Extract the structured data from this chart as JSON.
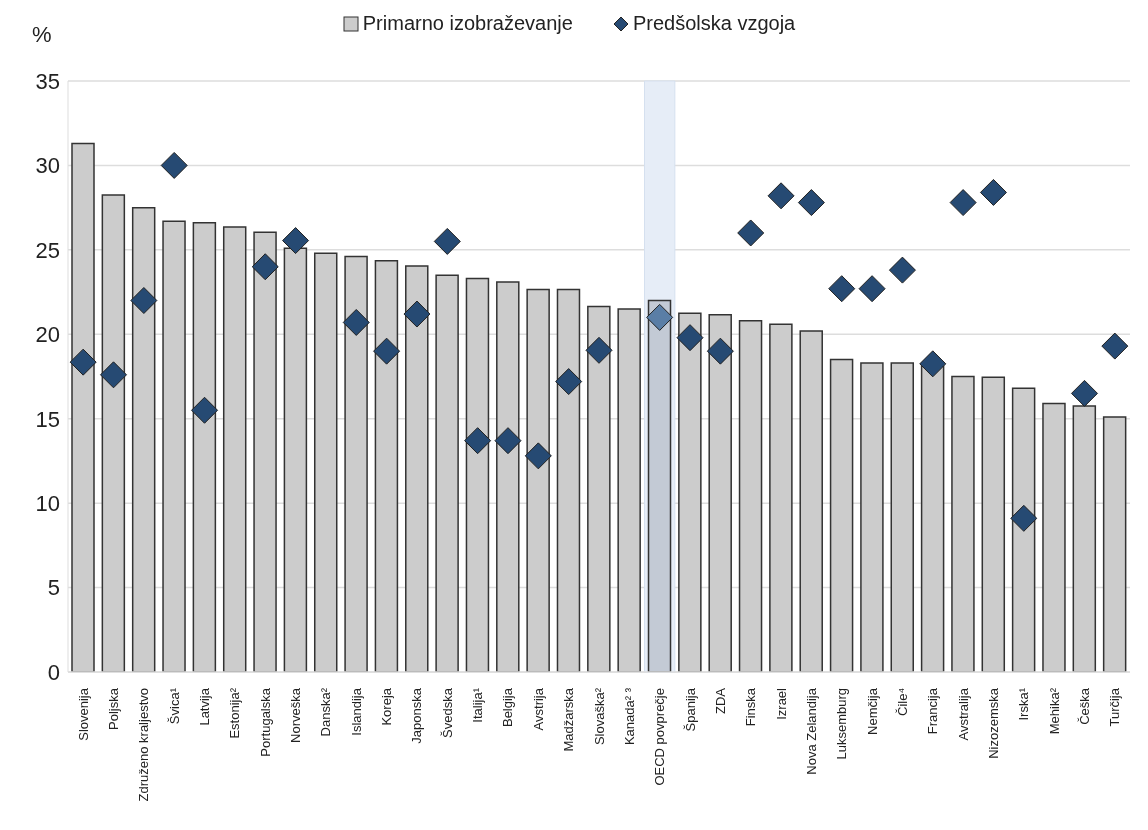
{
  "chart_data": {
    "type": "bar",
    "ylabel": "%",
    "categories": [
      "Slovenija",
      "Poljska",
      "Združeno kraljestvo",
      "Švica¹",
      "Latvija",
      "Estonija²",
      "Portugalska",
      "Norveška",
      "Danska²",
      "Islandija",
      "Koreja",
      "Japonska",
      "Švedska",
      "Italija¹",
      "Belgija",
      "Avstrija",
      "Madžarska",
      "Slovaška²",
      "Kanada² ³",
      "OECD povprečje",
      "Španija",
      "ZDA",
      "Finska",
      "Izrael",
      "Nova Zelandija",
      "Luksemburg",
      "Nemčija",
      "Čile⁴",
      "Francija",
      "Avstralija",
      "Nizozemska",
      "Irska¹",
      "Mehika²",
      "Češka",
      "Turčija"
    ],
    "series": [
      {
        "name": "Primarno izobraževanje",
        "color": "#cccccc",
        "colors": [
          "#cccccc",
          "#cccccc",
          "#cccccc",
          "#cccccc",
          "#cccccc",
          "#cccccc",
          "#cccccc",
          "#cccccc",
          "#cccccc",
          "#cccccc",
          "#cccccc",
          "#cccccc",
          "#cccccc",
          "#cccccc",
          "#cccccc",
          "#cccccc",
          "#cccccc",
          "#cccccc",
          "#cccccc",
          "#c3cad5",
          "#cccccc",
          "#cccccc",
          "#cccccc",
          "#cccccc",
          "#cccccc",
          "#cccccc",
          "#cccccc",
          "#cccccc",
          "#cccccc",
          "#cccccc",
          "#cccccc",
          "#cccccc",
          "#cccccc",
          "#cccccc",
          "#cccccc"
        ],
        "values": [
          31.3,
          28.25,
          27.5,
          26.7,
          26.6,
          26.35,
          26.05,
          25.1,
          24.8,
          24.6,
          24.35,
          24.05,
          23.5,
          23.3,
          23.1,
          22.65,
          22.65,
          21.65,
          21.5,
          22.0,
          21.25,
          21.15,
          20.8,
          20.6,
          20.2,
          18.5,
          18.3,
          18.3,
          18.1,
          17.5,
          17.45,
          16.8,
          15.9,
          15.75,
          15.1
        ]
      },
      {
        "name": "Predšolska vzgoja",
        "type": "scatter",
        "color": "#264a73",
        "colors": [
          "#264a73",
          "#264a73",
          "#264a73",
          "#264a73",
          "#264a73",
          "#264a73",
          "#264a73",
          "#264a73",
          "#264a73",
          "#264a73",
          "#264a73",
          "#264a73",
          "#264a73",
          "#264a73",
          "#264a73",
          "#264a73",
          "#264a73",
          "#264a73",
          "#264a73",
          "#5a7ea6",
          "#264a73",
          "#264a73",
          "#264a73",
          "#264a73",
          "#264a73",
          "#264a73",
          "#264a73",
          "#264a73",
          "#264a73",
          "#264a73",
          "#264a73",
          "#264a73",
          "#264a73",
          "#264a73",
          "#264a73"
        ],
        "values": [
          18.35,
          17.6,
          22.0,
          30.0,
          15.5,
          null,
          24.0,
          25.55,
          null,
          20.7,
          19.0,
          21.2,
          25.5,
          13.7,
          13.7,
          12.8,
          17.2,
          19.05,
          null,
          21.0,
          19.8,
          19.0,
          26.0,
          28.2,
          27.8,
          22.7,
          22.7,
          23.8,
          18.25,
          27.8,
          28.4,
          9.1,
          null,
          16.5,
          19.3
        ]
      }
    ],
    "ylim": [
      0,
      35
    ],
    "yticks": [
      0,
      5,
      10,
      15,
      20,
      25,
      30,
      35
    ],
    "grid": "y",
    "legend": "top",
    "marker": "diamond",
    "bands": [
      {
        "axis": "x",
        "from": "OECD povprečje",
        "to": "OECD povprečje",
        "color": "#e6edf7"
      }
    ]
  }
}
